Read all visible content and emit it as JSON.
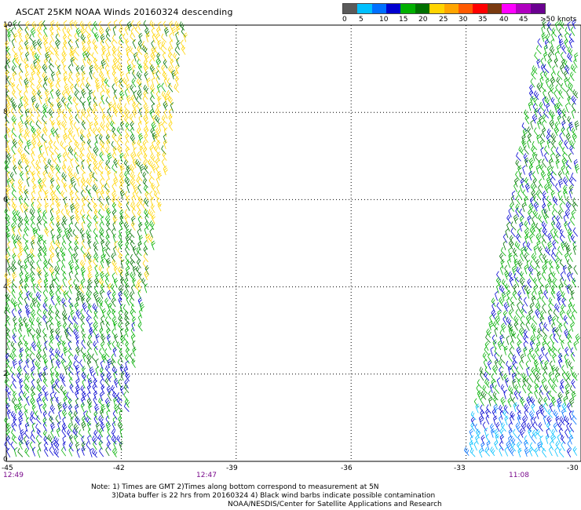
{
  "title": "ASCAT 25KM NOAA Winds 20160324 descending",
  "legend": {
    "colors": [
      "#5a5a5a",
      "#00c0ff",
      "#0070ff",
      "#0000d0",
      "#00b000",
      "#007000",
      "#ffd400",
      "#ffa500",
      "#ff5a00",
      "#ff0000",
      "#7a3a10",
      "#ff00ff",
      "#b000c0",
      "#6a0090"
    ],
    "labels": [
      "0",
      "5",
      "10",
      "15",
      "20",
      "25",
      "30",
      "35",
      "40",
      "45",
      ">50 knots"
    ]
  },
  "map_data": {
    "x_axis": {
      "ticks": [
        "-45",
        "-42",
        "-39",
        "-36",
        "-33",
        "-30"
      ],
      "range": [
        -45,
        -30
      ]
    },
    "y_axis": {
      "ticks": [
        "0",
        "2",
        "4",
        "6",
        "8",
        "10"
      ],
      "range": [
        0,
        10
      ]
    },
    "gridlines": "dotted",
    "swaths": [
      {
        "side": "left",
        "lon_bottom": [
          -45,
          -42
        ],
        "lon_top": [
          -45,
          -40.2
        ]
      },
      {
        "side": "right",
        "lon_bottom": [
          -33,
          -30
        ],
        "lon_top": [
          -31,
          -30
        ]
      }
    ]
  },
  "time_labels": [
    "12:49",
    "12:47",
    "11:08"
  ],
  "notes": {
    "line1": "Note: 1) Times are GMT 2)Times along bottom correspond to measurement at 5N",
    "line2": "3)Data buffer is 22 hrs from 20160324 4) Black wind barbs indicate possible contamination",
    "line3": "NOAA/NESDIS/Center for Satellite Applications and Research"
  }
}
